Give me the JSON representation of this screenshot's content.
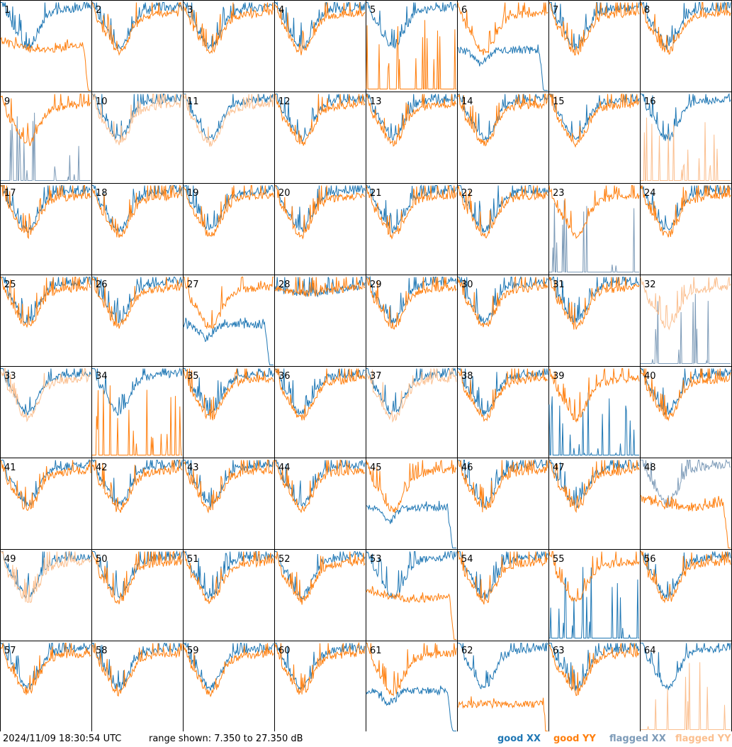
{
  "chart_data": {
    "type": "line",
    "layout": "grid 8x8 of small multiples",
    "ylim_db": [
      7.35,
      27.35
    ],
    "panels": [
      {
        "id": "1",
        "xx": "good",
        "yy": "good",
        "shape": "droop"
      },
      {
        "id": "2",
        "xx": "good",
        "yy": "good",
        "shape": "normal"
      },
      {
        "id": "3",
        "xx": "good",
        "yy": "good",
        "shape": "normal"
      },
      {
        "id": "4",
        "xx": "good",
        "yy": "good",
        "shape": "normal"
      },
      {
        "id": "5",
        "xx": "good",
        "yy": "good",
        "shape": "yy-low"
      },
      {
        "id": "6",
        "xx": "good",
        "yy": "good",
        "shape": "xx-droop"
      },
      {
        "id": "7",
        "xx": "good",
        "yy": "good",
        "shape": "normal"
      },
      {
        "id": "8",
        "xx": "good",
        "yy": "good",
        "shape": "normal"
      },
      {
        "id": "9",
        "xx": "flagged",
        "yy": "good",
        "shape": "xx-low"
      },
      {
        "id": "10",
        "xx": "good",
        "yy": "flagged",
        "shape": "normal"
      },
      {
        "id": "11",
        "xx": "good",
        "yy": "flagged",
        "shape": "normal"
      },
      {
        "id": "12",
        "xx": "good",
        "yy": "good",
        "shape": "normal"
      },
      {
        "id": "13",
        "xx": "good",
        "yy": "good",
        "shape": "normal"
      },
      {
        "id": "14",
        "xx": "good",
        "yy": "good",
        "shape": "normal"
      },
      {
        "id": "15",
        "xx": "good",
        "yy": "good",
        "shape": "normal"
      },
      {
        "id": "16",
        "xx": "good",
        "yy": "flagged",
        "shape": "yy-low"
      },
      {
        "id": "17",
        "xx": "good",
        "yy": "good",
        "shape": "normal"
      },
      {
        "id": "18",
        "xx": "good",
        "yy": "good",
        "shape": "normal"
      },
      {
        "id": "19",
        "xx": "good",
        "yy": "good",
        "shape": "normal"
      },
      {
        "id": "20",
        "xx": "good",
        "yy": "good",
        "shape": "normal"
      },
      {
        "id": "21",
        "xx": "good",
        "yy": "good",
        "shape": "normal"
      },
      {
        "id": "22",
        "xx": "good",
        "yy": "good",
        "shape": "normal"
      },
      {
        "id": "23",
        "xx": "flagged",
        "yy": "good",
        "shape": "xx-low"
      },
      {
        "id": "24",
        "xx": "good",
        "yy": "good",
        "shape": "normal"
      },
      {
        "id": "25",
        "xx": "good",
        "yy": "good",
        "shape": "normal"
      },
      {
        "id": "26",
        "xx": "good",
        "yy": "good",
        "shape": "normal"
      },
      {
        "id": "27",
        "xx": "good",
        "yy": "good",
        "shape": "xx-droop"
      },
      {
        "id": "28",
        "xx": "good",
        "yy": "good",
        "shape": "flat"
      },
      {
        "id": "29",
        "xx": "good",
        "yy": "good",
        "shape": "normal"
      },
      {
        "id": "30",
        "xx": "good",
        "yy": "good",
        "shape": "normal"
      },
      {
        "id": "31",
        "xx": "good",
        "yy": "good",
        "shape": "normal"
      },
      {
        "id": "32",
        "xx": "flagged",
        "yy": "flagged",
        "shape": "xx-low"
      },
      {
        "id": "33",
        "xx": "good",
        "yy": "flagged",
        "shape": "normal"
      },
      {
        "id": "34",
        "xx": "good",
        "yy": "good",
        "shape": "yy-low"
      },
      {
        "id": "35",
        "xx": "good",
        "yy": "good",
        "shape": "normal"
      },
      {
        "id": "36",
        "xx": "good",
        "yy": "good",
        "shape": "normal"
      },
      {
        "id": "37",
        "xx": "good",
        "yy": "flagged",
        "shape": "normal"
      },
      {
        "id": "38",
        "xx": "good",
        "yy": "good",
        "shape": "normal"
      },
      {
        "id": "39",
        "xx": "good",
        "yy": "good",
        "shape": "xx-low"
      },
      {
        "id": "40",
        "xx": "good",
        "yy": "good",
        "shape": "normal"
      },
      {
        "id": "41",
        "xx": "good",
        "yy": "good",
        "shape": "normal"
      },
      {
        "id": "42",
        "xx": "good",
        "yy": "good",
        "shape": "normal"
      },
      {
        "id": "43",
        "xx": "good",
        "yy": "good",
        "shape": "normal"
      },
      {
        "id": "44",
        "xx": "good",
        "yy": "good",
        "shape": "normal"
      },
      {
        "id": "45",
        "xx": "good",
        "yy": "good",
        "shape": "xx-droop"
      },
      {
        "id": "46",
        "xx": "good",
        "yy": "good",
        "shape": "normal"
      },
      {
        "id": "47",
        "xx": "good",
        "yy": "good",
        "shape": "normal"
      },
      {
        "id": "48",
        "xx": "flagged",
        "yy": "good",
        "shape": "droop"
      },
      {
        "id": "49",
        "xx": "good",
        "yy": "flagged",
        "shape": "normal"
      },
      {
        "id": "50",
        "xx": "good",
        "yy": "good",
        "shape": "normal"
      },
      {
        "id": "51",
        "xx": "good",
        "yy": "good",
        "shape": "normal"
      },
      {
        "id": "52",
        "xx": "good",
        "yy": "good",
        "shape": "normal"
      },
      {
        "id": "53",
        "xx": "good",
        "yy": "good",
        "shape": "droop"
      },
      {
        "id": "54",
        "xx": "good",
        "yy": "good",
        "shape": "normal"
      },
      {
        "id": "55",
        "xx": "good",
        "yy": "good",
        "shape": "xx-low"
      },
      {
        "id": "56",
        "xx": "good",
        "yy": "good",
        "shape": "normal"
      },
      {
        "id": "57",
        "xx": "good",
        "yy": "good",
        "shape": "normal"
      },
      {
        "id": "58",
        "xx": "good",
        "yy": "good",
        "shape": "normal"
      },
      {
        "id": "59",
        "xx": "good",
        "yy": "good",
        "shape": "normal"
      },
      {
        "id": "60",
        "xx": "good",
        "yy": "good",
        "shape": "normal"
      },
      {
        "id": "61",
        "xx": "good",
        "yy": "good",
        "shape": "xx-droop"
      },
      {
        "id": "62",
        "xx": "good",
        "yy": "good",
        "shape": "yy-droop"
      },
      {
        "id": "63",
        "xx": "good",
        "yy": "good",
        "shape": "normal"
      },
      {
        "id": "64",
        "xx": "good",
        "yy": "flagged",
        "shape": "yy-low"
      }
    ]
  },
  "footer": {
    "timestamp": "2024/11/09 18:30:54 UTC",
    "range_text": "range shown: 7.350 to 27.350 dB"
  },
  "legend": [
    {
      "key": "good_xx",
      "label": "good XX",
      "color": "#1f77b4"
    },
    {
      "key": "good_yy",
      "label": "good YY",
      "color": "#ff7f0e"
    },
    {
      "key": "flagged_xx",
      "label": "flagged XX",
      "color": "#7d9bb8"
    },
    {
      "key": "flagged_yy",
      "label": "flagged YY",
      "color": "#fbbf8f"
    }
  ]
}
